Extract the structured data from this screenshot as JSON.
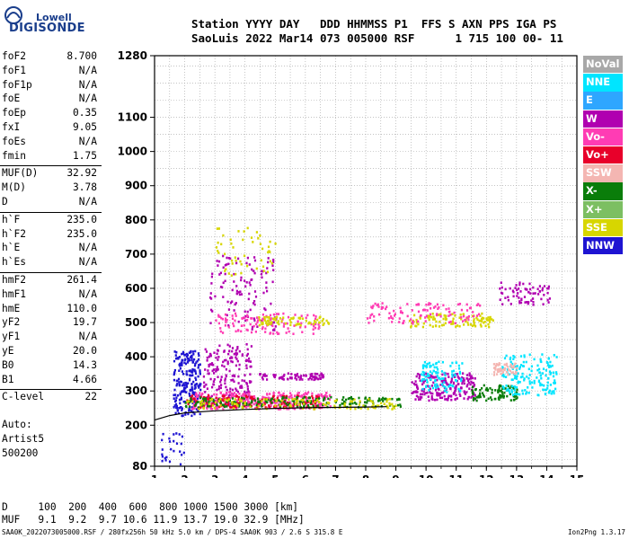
{
  "logo": {
    "top": "Lowell",
    "bottom": "DIGISONDE"
  },
  "header": {
    "line1": "Station YYYY DAY   DDD HHMMSS P1  FFS S AXN PPS IGA PS",
    "line2": "SaoLuis 2022 Mar14 073 005000 RSF      1 715 100 00- 11"
  },
  "params": [
    [
      {
        "k": "foF2",
        "v": "8.700"
      },
      {
        "k": "foF1",
        "v": "N/A"
      },
      {
        "k": "foF1p",
        "v": "N/A"
      },
      {
        "k": "foE",
        "v": "N/A"
      },
      {
        "k": "foEp",
        "v": "0.35"
      },
      {
        "k": "fxI",
        "v": "9.05"
      },
      {
        "k": "foEs",
        "v": "N/A"
      },
      {
        "k": "fmin",
        "v": "1.75"
      }
    ],
    [
      {
        "k": "MUF(D)",
        "v": "32.92"
      },
      {
        "k": "M(D)",
        "v": "3.78"
      },
      {
        "k": "D",
        "v": "N/A"
      }
    ],
    [
      {
        "k": "h`F",
        "v": "235.0"
      },
      {
        "k": "h`F2",
        "v": "235.0"
      },
      {
        "k": "h`E",
        "v": "N/A"
      },
      {
        "k": "h`Es",
        "v": "N/A"
      }
    ],
    [
      {
        "k": "hmF2",
        "v": "261.4"
      },
      {
        "k": "hmF1",
        "v": "N/A"
      },
      {
        "k": "hmE",
        "v": "110.0"
      },
      {
        "k": "yF2",
        "v": "19.7"
      },
      {
        "k": "yF1",
        "v": "N/A"
      },
      {
        "k": "yE",
        "v": "20.0"
      },
      {
        "k": "B0",
        "v": "14.3"
      },
      {
        "k": "B1",
        "v": "4.66"
      }
    ],
    [
      {
        "k": "C-level",
        "v": "22"
      }
    ]
  ],
  "auto": {
    "line1": "Auto:",
    "line2": "Artist5",
    "line3": "500200"
  },
  "legend": [
    {
      "label": "NoVal",
      "color": "#a8a8a8"
    },
    {
      "label": "NNE",
      "color": "#00e5ff"
    },
    {
      "label": "E",
      "color": "#2ea6ff"
    },
    {
      "label": "W",
      "color": "#b000b0"
    },
    {
      "label": "Vo-",
      "color": "#ff3cb4"
    },
    {
      "label": "Vo+",
      "color": "#e8002a"
    },
    {
      "label": "SSW",
      "color": "#f4b6b2"
    },
    {
      "label": "X-",
      "color": "#0a7d0a"
    },
    {
      "label": "X+",
      "color": "#7cbf62"
    },
    {
      "label": "SSE",
      "color": "#d7d600"
    },
    {
      "label": "NNW",
      "color": "#1e14d2"
    }
  ],
  "bottom": {
    "line1": "D     100  200  400  600  800 1000 1500 3000 [km]",
    "line2": "MUF   9.1  9.2  9.7 10.6 11.9 13.7 19.0 32.9 [MHz]"
  },
  "footer": {
    "left": "SAA0K_2022073005000.RSF / 280fx256h 50 kHz 5.0 km / DPS-4 SAA0K 903 / 2.6 S 315.8 E",
    "right": "Ion2Png 1.3.17"
  },
  "chart_data": {
    "type": "scatter",
    "title": "",
    "xlabel": "",
    "ylabel": "",
    "xlim": [
      1,
      15
    ],
    "ylim": [
      80,
      1280
    ],
    "xticks": [
      1,
      2,
      3,
      4,
      5,
      6,
      7,
      8,
      9,
      10,
      11,
      12,
      13,
      14,
      15
    ],
    "yticks": [
      80,
      200,
      300,
      400,
      500,
      600,
      700,
      800,
      900,
      1000,
      1100,
      1280
    ],
    "grid": true,
    "trace": {
      "name": "",
      "color": "#000000",
      "x": [
        1.0,
        1.5,
        2.0,
        3.0,
        4.0,
        5.0,
        6.0,
        7.0,
        8.0,
        8.7
      ],
      "y": [
        215,
        228,
        236,
        242,
        246,
        249,
        251,
        252,
        253,
        254
      ]
    },
    "regions": [
      {
        "series": "NNW",
        "x0": 1.6,
        "x1": 2.5,
        "y0": 230,
        "y1": 420,
        "n": 220
      },
      {
        "series": "W",
        "x0": 2.6,
        "x1": 4.2,
        "y0": 260,
        "y1": 440,
        "n": 200
      },
      {
        "series": "Vo-",
        "x0": 2.2,
        "x1": 6.8,
        "y0": 250,
        "y1": 300,
        "n": 320
      },
      {
        "series": "Vo+",
        "x0": 2.0,
        "x1": 6.5,
        "y0": 255,
        "y1": 290,
        "n": 160
      },
      {
        "series": "X-",
        "x0": 2.0,
        "x1": 9.2,
        "y0": 255,
        "y1": 285,
        "n": 200
      },
      {
        "series": "SSE",
        "x0": 2.0,
        "x1": 9.0,
        "y0": 250,
        "y1": 280,
        "n": 120
      },
      {
        "series": "W",
        "x0": 4.4,
        "x1": 6.6,
        "y0": 335,
        "y1": 355,
        "n": 80
      },
      {
        "series": "W",
        "x0": 2.8,
        "x1": 5.0,
        "y0": 480,
        "y1": 700,
        "n": 120
      },
      {
        "series": "Vo-",
        "x0": 3.0,
        "x1": 6.5,
        "y0": 470,
        "y1": 530,
        "n": 110
      },
      {
        "series": "SSE",
        "x0": 4.3,
        "x1": 6.8,
        "y0": 495,
        "y1": 520,
        "n": 70
      },
      {
        "series": "W",
        "x0": 9.5,
        "x1": 11.6,
        "y0": 275,
        "y1": 355,
        "n": 220
      },
      {
        "series": "NNE",
        "x0": 9.8,
        "x1": 11.2,
        "y0": 300,
        "y1": 390,
        "n": 100
      },
      {
        "series": "X-",
        "x0": 11.5,
        "x1": 13.0,
        "y0": 275,
        "y1": 320,
        "n": 90
      },
      {
        "series": "NNE",
        "x0": 12.5,
        "x1": 14.3,
        "y0": 290,
        "y1": 410,
        "n": 160
      },
      {
        "series": "SSW",
        "x0": 12.2,
        "x1": 13.0,
        "y0": 350,
        "y1": 385,
        "n": 50
      },
      {
        "series": "SSE",
        "x0": 9.4,
        "x1": 12.2,
        "y0": 490,
        "y1": 530,
        "n": 110
      },
      {
        "series": "Vo-",
        "x0": 8.0,
        "x1": 11.8,
        "y0": 500,
        "y1": 560,
        "n": 110
      },
      {
        "series": "W",
        "x0": 12.4,
        "x1": 14.1,
        "y0": 555,
        "y1": 620,
        "n": 70
      },
      {
        "series": "SSE",
        "x0": 3.0,
        "x1": 5.0,
        "y0": 640,
        "y1": 780,
        "n": 50
      },
      {
        "series": "NNW",
        "x0": 1.2,
        "x1": 2.0,
        "y0": 85,
        "y1": 180,
        "n": 25
      }
    ]
  }
}
